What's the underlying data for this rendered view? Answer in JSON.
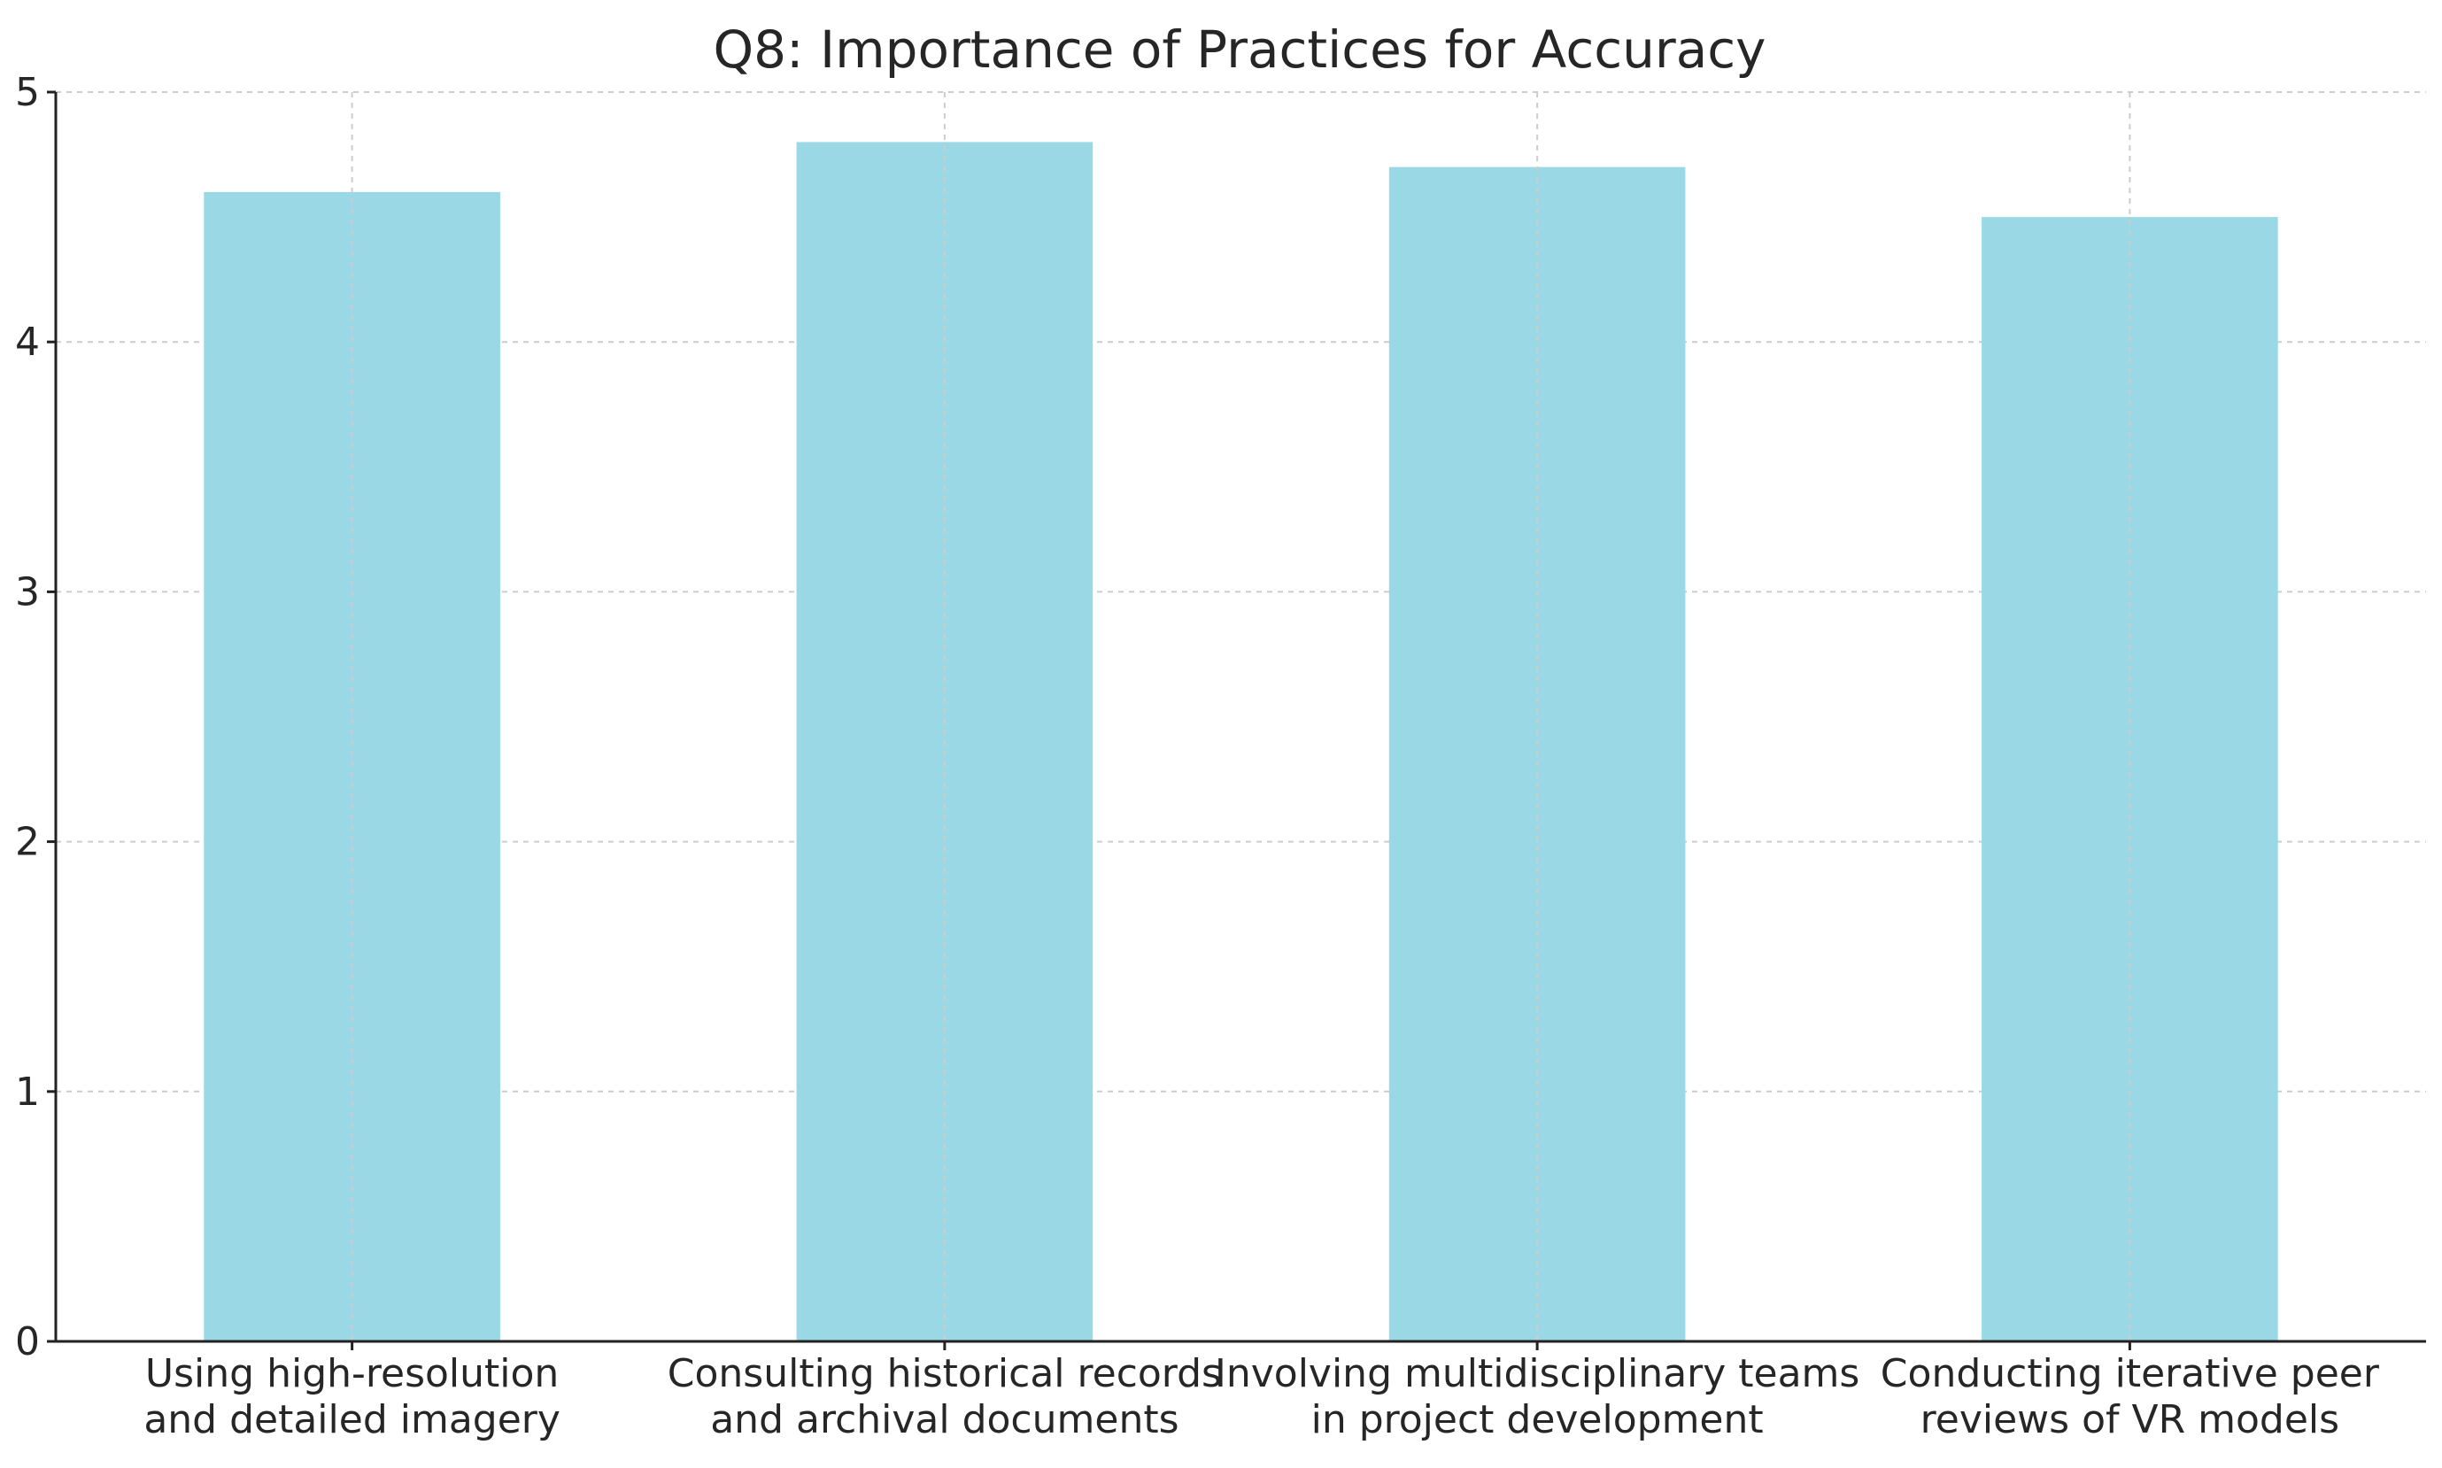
{
  "chart_data": {
    "type": "bar",
    "title": "Q8: Importance of Practices for Accuracy",
    "xlabel": "",
    "ylabel": "",
    "categories": [
      [
        "Using high-resolution",
        "and detailed imagery"
      ],
      [
        "Consulting historical records",
        "and archival documents"
      ],
      [
        "Involving multidisciplinary teams",
        "in project development"
      ],
      [
        "Conducting iterative peer",
        "reviews of VR models"
      ]
    ],
    "values": [
      4.6,
      4.8,
      4.7,
      4.5
    ],
    "ylim": [
      0,
      5
    ],
    "yticks": [
      "0",
      "1",
      "2",
      "3",
      "4",
      "5"
    ],
    "grid": true,
    "bar_color": "#9bd8e6"
  }
}
